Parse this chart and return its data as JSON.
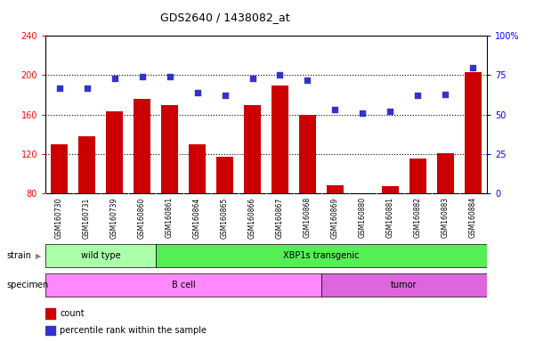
{
  "title": "GDS2640 / 1438082_at",
  "samples": [
    "GSM160730",
    "GSM160731",
    "GSM160739",
    "GSM160860",
    "GSM160861",
    "GSM160864",
    "GSM160865",
    "GSM160866",
    "GSM160867",
    "GSM160868",
    "GSM160869",
    "GSM160880",
    "GSM160881",
    "GSM160882",
    "GSM160883",
    "GSM160884"
  ],
  "counts": [
    130,
    138,
    163,
    176,
    170,
    130,
    117,
    170,
    190,
    160,
    88,
    80,
    87,
    115,
    121,
    203
  ],
  "percentiles": [
    67,
    67,
    73,
    74,
    74,
    64,
    62,
    73,
    75,
    72,
    53,
    51,
    52,
    62,
    63,
    80
  ],
  "bar_color": "#cc0000",
  "dot_color": "#3333cc",
  "ylim_left": [
    80,
    240
  ],
  "ylim_right": [
    0,
    100
  ],
  "yticks_left": [
    80,
    120,
    160,
    200,
    240
  ],
  "yticks_right": [
    0,
    25,
    50,
    75,
    100
  ],
  "yticklabels_right": [
    "0",
    "25",
    "50",
    "75",
    "100%"
  ],
  "grid_values": [
    120,
    160,
    200
  ],
  "strain_groups": [
    {
      "label": "wild type",
      "start": 0,
      "end": 4,
      "color": "#aaffaa"
    },
    {
      "label": "XBP1s transgenic",
      "start": 4,
      "end": 16,
      "color": "#55ee55"
    }
  ],
  "specimen_groups": [
    {
      "label": "B cell",
      "start": 0,
      "end": 10,
      "color": "#ff88ff"
    },
    {
      "label": "tumor",
      "start": 10,
      "end": 16,
      "color": "#dd66dd"
    }
  ],
  "strain_label": "strain",
  "specimen_label": "specimen",
  "legend_count_label": "count",
  "legend_percentile_label": "percentile rank within the sample"
}
